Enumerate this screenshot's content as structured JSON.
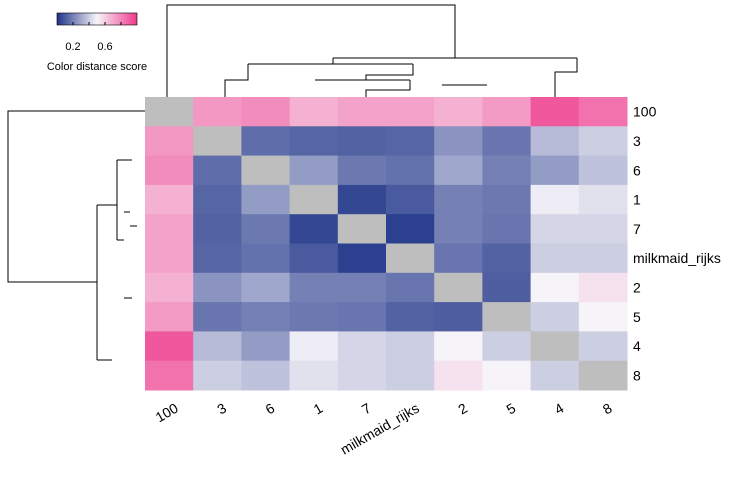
{
  "chart_data": {
    "type": "heatmap",
    "labels": [
      "100",
      "3",
      "6",
      "1",
      "7",
      "milkmaid_rijks",
      "2",
      "5",
      "4",
      "8"
    ],
    "values": [
      [
        null,
        0.75,
        0.78,
        0.68,
        0.72,
        0.72,
        0.68,
        0.74,
        0.92,
        0.85
      ],
      [
        0.75,
        null,
        0.15,
        0.13,
        0.12,
        0.13,
        0.25,
        0.17,
        0.35,
        0.4
      ],
      [
        0.78,
        0.15,
        null,
        0.27,
        0.18,
        0.16,
        0.3,
        0.2,
        0.27,
        0.37
      ],
      [
        0.68,
        0.13,
        0.27,
        null,
        0.05,
        0.1,
        0.2,
        0.18,
        0.48,
        0.45
      ],
      [
        0.72,
        0.12,
        0.18,
        0.05,
        null,
        0.03,
        0.2,
        0.17,
        0.42,
        0.42
      ],
      [
        0.72,
        0.13,
        0.16,
        0.1,
        0.03,
        null,
        0.17,
        0.12,
        0.4,
        0.4
      ],
      [
        0.68,
        0.25,
        0.3,
        0.2,
        0.2,
        0.17,
        null,
        0.11,
        0.5,
        0.55
      ],
      [
        0.74,
        0.17,
        0.2,
        0.18,
        0.17,
        0.12,
        0.11,
        null,
        0.4,
        0.5
      ],
      [
        0.92,
        0.35,
        0.27,
        0.48,
        0.42,
        0.4,
        0.5,
        0.4,
        null,
        0.4
      ],
      [
        0.85,
        0.4,
        0.37,
        0.45,
        0.42,
        0.4,
        0.55,
        0.5,
        0.4,
        null
      ]
    ],
    "diagonal_color": "#bebebe",
    "color_scale": {
      "stops": [
        {
          "value": 0.0,
          "color": "#1e3488"
        },
        {
          "value": 0.5,
          "color": "#f7f4f9"
        },
        {
          "value": 1.0,
          "color": "#ee3a8c"
        }
      ],
      "range": [
        0,
        1
      ]
    },
    "legend": {
      "title": "Color distance score",
      "ticks": [
        0.2,
        0.6
      ],
      "tick_labels": [
        "0.2",
        "0.6"
      ],
      "placement": "top-left"
    },
    "dendrogram": "hierarchical clustering shown on rows (left) and columns (top)"
  }
}
